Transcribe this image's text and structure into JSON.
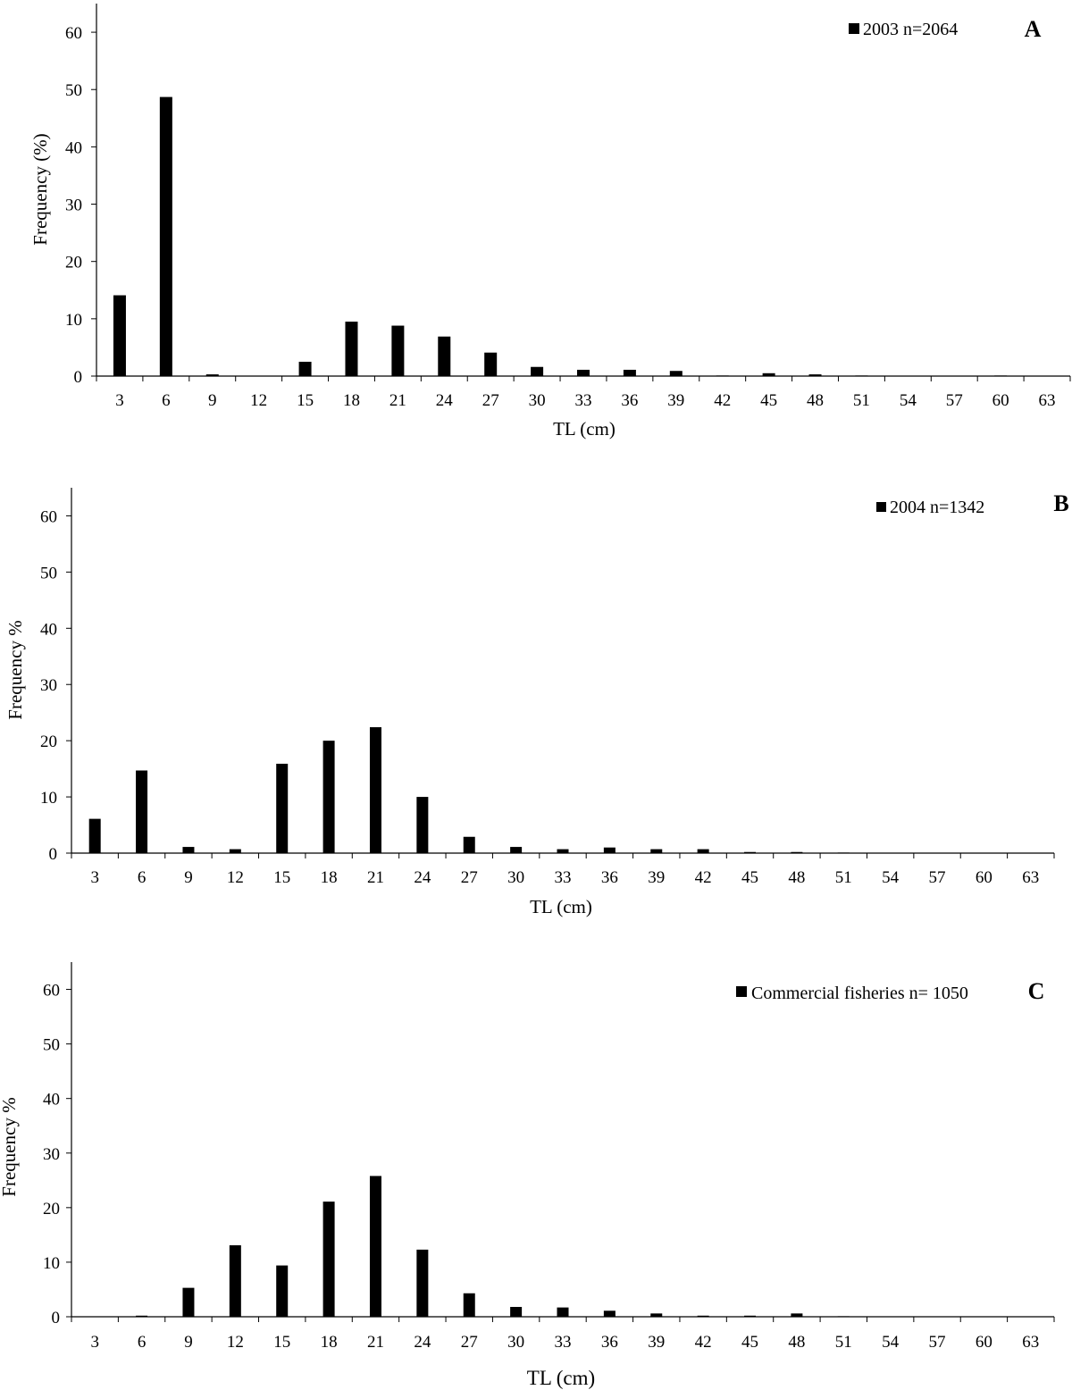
{
  "chart_data": [
    {
      "type": "bar",
      "panel_label": "A",
      "legend": "2003 n=2064",
      "legend_position": "top-right",
      "xlabel": "TL (cm)",
      "ylabel": "Frequency (%)",
      "ylim": [
        0,
        65
      ],
      "yticks": [
        0,
        10,
        20,
        30,
        40,
        50,
        60
      ],
      "grid": false,
      "categories": [
        "3",
        "6",
        "9",
        "12",
        "15",
        "18",
        "21",
        "24",
        "27",
        "30",
        "33",
        "36",
        "39",
        "42",
        "45",
        "48",
        "51",
        "54",
        "57",
        "60",
        "63"
      ],
      "values": [
        14.1,
        48.7,
        0.3,
        0,
        2.5,
        9.5,
        8.8,
        6.9,
        4.1,
        1.6,
        1.1,
        1.1,
        0.9,
        0.1,
        0.5,
        0.3,
        0.1,
        0,
        0,
        0.1,
        0
      ]
    },
    {
      "type": "bar",
      "panel_label": "B",
      "legend": "2004 n=1342",
      "legend_position": "top-right",
      "xlabel": "TL (cm)",
      "ylabel": "Frequency %",
      "ylim": [
        0,
        65
      ],
      "yticks": [
        0,
        10,
        20,
        30,
        40,
        50,
        60
      ],
      "grid": false,
      "categories": [
        "3",
        "6",
        "9",
        "12",
        "15",
        "18",
        "21",
        "24",
        "27",
        "30",
        "33",
        "36",
        "39",
        "42",
        "45",
        "48",
        "51",
        "54",
        "57",
        "60",
        "63"
      ],
      "values": [
        6.1,
        14.7,
        1.1,
        0.7,
        15.9,
        20.0,
        22.4,
        10.0,
        2.9,
        1.1,
        0.7,
        1.0,
        0.7,
        0.7,
        0.2,
        0.2,
        0.1,
        0,
        0,
        0,
        0
      ]
    },
    {
      "type": "bar",
      "panel_label": "C",
      "legend": "Commercial fisheries n= 1050",
      "legend_position": "top-right",
      "xlabel": "TL (cm)",
      "ylabel": "Frequency %",
      "ylim": [
        0,
        65
      ],
      "yticks": [
        0,
        10,
        20,
        30,
        40,
        50,
        60
      ],
      "grid": false,
      "categories": [
        "3",
        "6",
        "9",
        "12",
        "15",
        "18",
        "21",
        "24",
        "27",
        "30",
        "33",
        "36",
        "39",
        "42",
        "45",
        "48",
        "51",
        "54",
        "57",
        "60",
        "63"
      ],
      "values": [
        0,
        0.2,
        5.3,
        13.1,
        9.4,
        21.1,
        25.8,
        12.3,
        4.3,
        1.8,
        1.7,
        1.1,
        0.6,
        0.2,
        0.2,
        0.6,
        0.1,
        0,
        0,
        0,
        0
      ]
    }
  ]
}
